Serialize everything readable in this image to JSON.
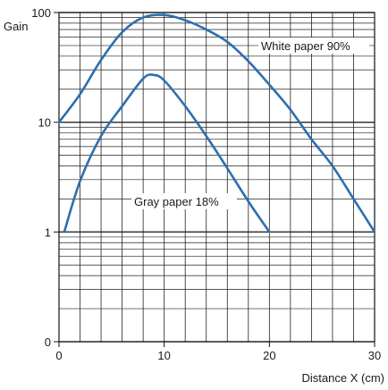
{
  "chart_data": {
    "type": "line",
    "xlabel": "Distance  X (cm)",
    "ylabel": "Gain",
    "xlim": [
      0,
      30
    ],
    "y_scale": "log",
    "ylim_display": [
      0.1,
      100
    ],
    "grid": true,
    "x_ticks": [
      "0",
      "10",
      "20",
      "30"
    ],
    "y_ticks": [
      {
        "value": 100,
        "label": "100"
      },
      {
        "value": 10,
        "label": "10"
      },
      {
        "value": 1,
        "label": "1"
      },
      {
        "value": 0.1,
        "label": "0"
      }
    ],
    "line_color": "#2d6fae",
    "series": [
      {
        "name": "White paper 90%",
        "x": [
          0,
          2,
          4,
          6,
          8,
          10,
          12,
          14,
          16,
          18,
          20,
          22,
          24,
          26,
          28,
          30
        ],
        "y": [
          10,
          18,
          37,
          66,
          90,
          95,
          85,
          70,
          54,
          36,
          22,
          13,
          7,
          4,
          2,
          1
        ]
      },
      {
        "name": "Gray paper 18%",
        "x": [
          0.5,
          2,
          4,
          6,
          8,
          9,
          10,
          12,
          14,
          16,
          18,
          20
        ],
        "y": [
          1,
          2.9,
          7.5,
          14,
          25,
          27,
          24,
          14,
          7.5,
          3.8,
          1.9,
          1
        ]
      }
    ]
  }
}
